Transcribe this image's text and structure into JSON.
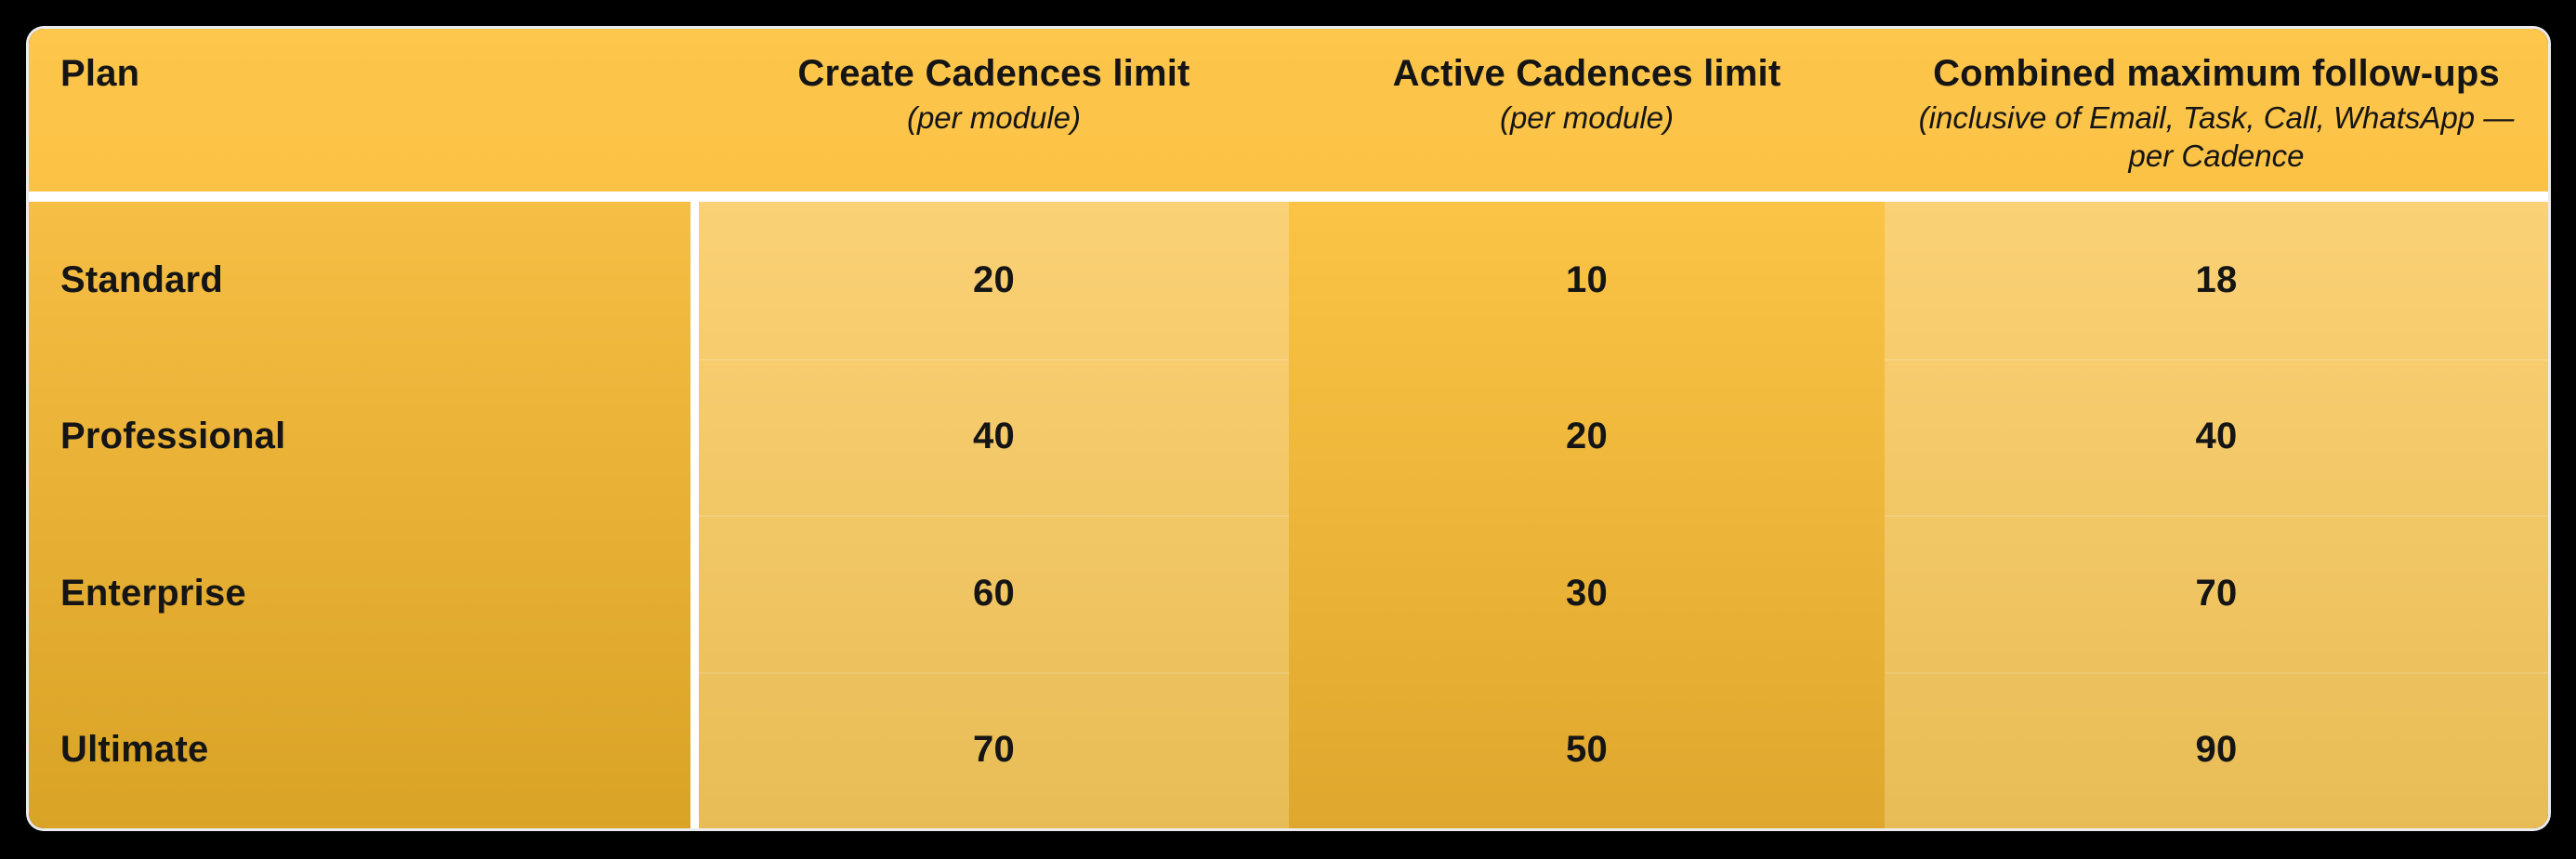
{
  "table": {
    "columns": [
      {
        "header": "Plan",
        "subheader": ""
      },
      {
        "header": "Create Cadences limit",
        "subheader": "(per module)"
      },
      {
        "header": "Active Cadences limit",
        "subheader": "(per module)"
      },
      {
        "header": "Combined maximum follow-ups",
        "subheader": "(inclusive of Email, Task, Call, WhatsApp — per Cadence"
      }
    ],
    "rows": [
      {
        "plan": "Standard",
        "create_limit": "20",
        "active_limit": "10",
        "max_followups": "18"
      },
      {
        "plan": "Professional",
        "create_limit": "40",
        "active_limit": "20",
        "max_followups": "40"
      },
      {
        "plan": "Enterprise",
        "create_limit": "60",
        "active_limit": "30",
        "max_followups": "70"
      },
      {
        "plan": "Ultimate",
        "create_limit": "70",
        "active_limit": "50",
        "max_followups": "90"
      }
    ]
  },
  "chart_data": {
    "type": "table",
    "title": "",
    "columns": [
      "Plan",
      "Create Cadences limit (per module)",
      "Active Cadences limit (per module)",
      "Combined maximum follow-ups (inclusive of Email, Task, Call, WhatsApp — per Cadence"
    ],
    "rows": [
      [
        "Standard",
        20,
        10,
        18
      ],
      [
        "Professional",
        40,
        20,
        40
      ],
      [
        "Enterprise",
        60,
        30,
        70
      ],
      [
        "Ultimate",
        70,
        50,
        90
      ]
    ]
  },
  "colors": {
    "page_background": "#000000",
    "header_background": "#FCC449",
    "plan_column_top": "#F6BE44",
    "plan_column_bottom": "#D9A326",
    "light_column_top": "#FBD176",
    "light_column_bottom": "#E8BC55",
    "active_column_top": "#FBC446",
    "active_column_bottom": "#DFA72D",
    "separator": "#FFFFFF",
    "text": "#151515"
  }
}
